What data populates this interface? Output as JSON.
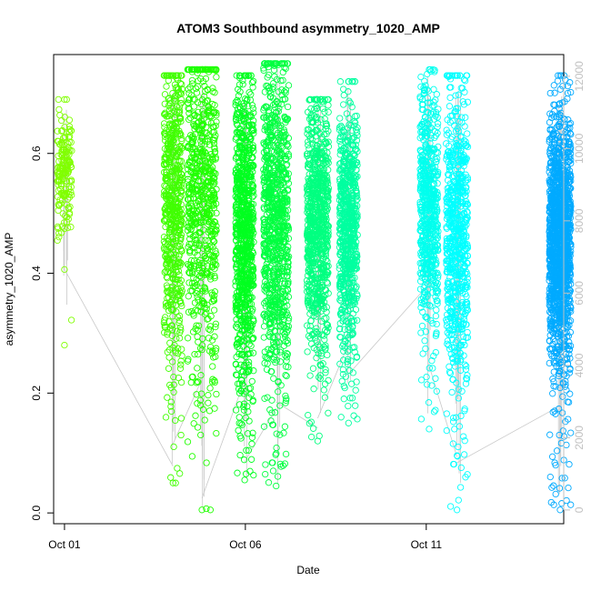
{
  "chart_data": {
    "type": "scatter",
    "title": "ATOM3 Southbound asymmetry_1020_AMP",
    "xlabel": "Date",
    "ylabel": "asymmetry_1020_AMP",
    "x_ticks": [
      "Oct 01",
      "Oct 06",
      "Oct 11"
    ],
    "y_ticks": [
      "0.0",
      "0.2",
      "0.4",
      "0.6"
    ],
    "y_range": [
      -0.018,
      0.765
    ],
    "y2_ticks": [
      "0",
      "2000",
      "4000",
      "6000",
      "8000",
      "10000",
      "12000"
    ],
    "y2_range": [
      -380,
      12600
    ],
    "x_range_days": [
      0.7,
      14.8
    ],
    "grid": false,
    "legend": "none",
    "line_color": "#c8c8c8",
    "axis_color": "#000000",
    "right_axis_color": "#c0c0c0",
    "series": [
      {
        "date": "Sep 30",
        "day": 0.0,
        "color": "#80ff00",
        "y_min": 0.28,
        "y_max": 0.69,
        "y_mean": 0.57,
        "y_sd": 0.045,
        "n": 180,
        "jitter": 0.04
      },
      {
        "date": "Oct 03",
        "day": 3.0,
        "color": "#40ff00",
        "y_min": 0.05,
        "y_max": 0.73,
        "y_mean": 0.5,
        "y_sd": 0.13,
        "n": 600,
        "jitter": 0.05
      },
      {
        "date": "Oct 04",
        "day": 3.8,
        "color": "#20ff00",
        "y_min": 0.005,
        "y_max": 0.74,
        "y_mean": 0.52,
        "y_sd": 0.15,
        "n": 700,
        "jitter": 0.08
      },
      {
        "date": "Oct 05",
        "day": 4.98,
        "color": "#00ff20",
        "y_min": 0.055,
        "y_max": 0.73,
        "y_mean": 0.46,
        "y_sd": 0.13,
        "n": 900,
        "jitter": 0.05
      },
      {
        "date": "Oct 06",
        "day": 5.85,
        "color": "#00ff40",
        "y_min": 0.045,
        "y_max": 0.75,
        "y_mean": 0.47,
        "y_sd": 0.14,
        "n": 900,
        "jitter": 0.07
      },
      {
        "date": "Oct 07",
        "day": 7.0,
        "color": "#00ff80",
        "y_min": 0.12,
        "y_max": 0.69,
        "y_mean": 0.48,
        "y_sd": 0.1,
        "n": 800,
        "jitter": 0.06
      },
      {
        "date": "Oct 08",
        "day": 7.85,
        "color": "#00ffa0",
        "y_min": 0.15,
        "y_max": 0.72,
        "y_mean": 0.47,
        "y_sd": 0.1,
        "n": 700,
        "jitter": 0.05
      },
      {
        "date": "Oct 10",
        "day": 10.08,
        "color": "#00ffee",
        "y_min": 0.14,
        "y_max": 0.74,
        "y_mean": 0.5,
        "y_sd": 0.1,
        "n": 600,
        "jitter": 0.05
      },
      {
        "date": "Oct 10",
        "day": 10.85,
        "color": "#00ffff",
        "y_min": 0.005,
        "y_max": 0.73,
        "y_mean": 0.44,
        "y_sd": 0.13,
        "n": 700,
        "jitter": 0.06
      },
      {
        "date": "Oct 13",
        "day": 13.7,
        "color": "#00aaff",
        "y_min": 0.005,
        "y_max": 0.73,
        "y_mean": 0.45,
        "y_sd": 0.1,
        "n": 1400,
        "jitter": 0.06
      }
    ]
  }
}
